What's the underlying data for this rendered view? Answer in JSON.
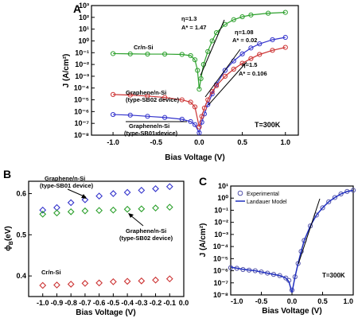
{
  "chart_data": [
    {
      "panel": "A",
      "type": "scatter",
      "xlabel": "Bias Voltage (V)",
      "ylabel": "J (A/cm²)",
      "xlim": [
        -1.25,
        1.15
      ],
      "ylim_log10": [
        -8,
        3
      ],
      "y_scale": "log",
      "x_ticks": [
        "-1.0",
        "-0.5",
        "0.0",
        "0.5",
        "1.0"
      ],
      "y_tick_labels": [
        "10⁻⁸",
        "10⁻⁷",
        "10⁻⁶",
        "10⁻⁵",
        "10⁻⁴",
        "10⁻³",
        "10⁻²",
        "10⁻¹",
        "10⁰",
        "10¹",
        "10²",
        "10³"
      ],
      "annotations": {
        "temperature": "T=300K",
        "green_eta": "η=1.3",
        "green_a": "A* = 1.47",
        "blue_eta": "η=1.08",
        "blue_a": "A* = 0.02",
        "red_eta": "η=1.5",
        "red_a": "A* = 0.106"
      },
      "curve_labels": {
        "cr": "Cr/n-Si",
        "sb02_line1": "Graphene/n-Si",
        "sb02_line2": "(type-SB02 device)",
        "sb01_line1": "Graphene/n-Si",
        "sb01_line2": "(type-SB01 device)"
      },
      "series": [
        {
          "color": "#2ca02c",
          "points": [
            [
              -1.0,
              -1.08
            ],
            [
              -0.8,
              -1.1
            ],
            [
              -0.6,
              -1.12
            ],
            [
              -0.4,
              -1.12
            ],
            [
              -0.2,
              -1.15
            ],
            [
              -0.1,
              -1.25
            ],
            [
              -0.05,
              -1.6
            ],
            [
              -0.02,
              -2.5
            ],
            [
              0.0,
              -4.1
            ],
            [
              0.02,
              -3.2
            ],
            [
              0.05,
              -2.0
            ],
            [
              0.1,
              -0.9
            ],
            [
              0.15,
              0.0
            ],
            [
              0.2,
              0.7
            ],
            [
              0.3,
              1.4
            ],
            [
              0.4,
              1.8
            ],
            [
              0.5,
              2.05
            ],
            [
              0.6,
              2.2
            ],
            [
              0.8,
              2.35
            ],
            [
              1.0,
              2.42
            ]
          ]
        },
        {
          "color": "#3333cc",
          "points": [
            [
              -1.0,
              -6.25
            ],
            [
              -0.8,
              -6.3
            ],
            [
              -0.6,
              -6.4
            ],
            [
              -0.4,
              -6.5
            ],
            [
              -0.2,
              -6.65
            ],
            [
              -0.1,
              -6.85
            ],
            [
              -0.05,
              -7.1
            ],
            [
              0.0,
              -7.8
            ],
            [
              0.03,
              -6.9
            ],
            [
              0.06,
              -6.2
            ],
            [
              0.1,
              -5.4
            ],
            [
              0.15,
              -4.5
            ],
            [
              0.2,
              -3.7
            ],
            [
              0.3,
              -2.5
            ],
            [
              0.4,
              -1.7
            ],
            [
              0.5,
              -1.1
            ],
            [
              0.6,
              -0.6
            ],
            [
              0.7,
              -0.25
            ],
            [
              0.85,
              0.1
            ],
            [
              1.0,
              0.3
            ]
          ]
        },
        {
          "color": "#cc3333",
          "points": [
            [
              -1.0,
              -4.55
            ],
            [
              -0.8,
              -4.6
            ],
            [
              -0.6,
              -4.68
            ],
            [
              -0.4,
              -4.8
            ],
            [
              -0.2,
              -5.0
            ],
            [
              -0.1,
              -5.2
            ],
            [
              -0.05,
              -5.6
            ],
            [
              0.0,
              -7.3
            ],
            [
              0.03,
              -6.4
            ],
            [
              0.06,
              -5.7
            ],
            [
              0.1,
              -5.0
            ],
            [
              0.15,
              -4.3
            ],
            [
              0.2,
              -3.8
            ],
            [
              0.3,
              -3.0
            ],
            [
              0.4,
              -2.4
            ],
            [
              0.5,
              -1.9
            ],
            [
              0.6,
              -1.5
            ],
            [
              0.7,
              -1.15
            ],
            [
              0.85,
              -0.8
            ],
            [
              1.0,
              -0.55
            ]
          ]
        }
      ]
    },
    {
      "panel": "B",
      "type": "scatter",
      "xlabel": "Bias Voltage (V)",
      "ylabel": "ϕ",
      "ylabel_sub": "B",
      "ylabel_suffix": "(eV)",
      "xlim": [
        -1.1,
        0.0
      ],
      "ylim": [
        0.35,
        0.63
      ],
      "x_ticks": [
        "-1.0",
        "-0.9",
        "-0.8",
        "-0.7",
        "-0.6",
        "-0.5",
        "-0.4",
        "-0.3",
        "-0.2",
        "-0.1",
        "0.0"
      ],
      "y_ticks": [
        "0.4",
        "0.5",
        "0.6"
      ],
      "curve_labels": {
        "sb01_line1": "Graphene/n-Si",
        "sb01_line2": "(type-SB01 device)",
        "sb02_line1": "Graphene/n-Si",
        "sb02_line2": "(type-SB02 device)",
        "cr": "Cr/n-Si"
      },
      "series": [
        {
          "color": "#3333cc",
          "x": [
            -1.0,
            -0.9,
            -0.8,
            -0.7,
            -0.6,
            -0.5,
            -0.4,
            -0.3,
            -0.2,
            -0.1
          ],
          "values": [
            0.56,
            0.566,
            0.578,
            0.585,
            0.594,
            0.6,
            0.603,
            0.608,
            0.612,
            0.617
          ]
        },
        {
          "color": "#2ca02c",
          "x": [
            -1.0,
            -0.9,
            -0.8,
            -0.7,
            -0.6,
            -0.5,
            -0.4,
            -0.3,
            -0.2,
            -0.1
          ],
          "values": [
            0.55,
            0.553,
            0.556,
            0.558,
            0.559,
            0.56,
            0.562,
            0.563,
            0.565,
            0.567
          ]
        },
        {
          "color": "#cc3333",
          "x": [
            -1.0,
            -0.9,
            -0.8,
            -0.7,
            -0.6,
            -0.5,
            -0.4,
            -0.3,
            -0.2,
            -0.1
          ],
          "values": [
            0.377,
            0.378,
            0.38,
            0.382,
            0.383,
            0.386,
            0.387,
            0.388,
            0.39,
            0.393
          ]
        }
      ]
    },
    {
      "panel": "C",
      "type": "line",
      "xlabel": "Bias Voltage (V)",
      "ylabel": "J (A/cm²)",
      "xlim": [
        -1.0,
        1.0
      ],
      "ylim_log10": [
        -8,
        1
      ],
      "y_scale": "log",
      "x_ticks": [
        "-1.0",
        "-0.5",
        "0.0",
        "0.5",
        "1.0"
      ],
      "y_tick_labels": [
        "10⁻⁸",
        "10⁻⁷",
        "10⁻⁶",
        "10⁻⁵",
        "10⁻⁴",
        "10⁻³",
        "10⁻²",
        "10⁻¹",
        "10⁰",
        "10¹"
      ],
      "legend": [
        "Experimental",
        "Landauer Model"
      ],
      "legend_position": "top-left",
      "temperature": "T=300K",
      "series": [
        {
          "name": "Experimental",
          "color": "#5555aa",
          "marker": "circle",
          "points": [
            [
              -1.0,
              -5.75
            ],
            [
              -0.9,
              -5.8
            ],
            [
              -0.8,
              -5.9
            ],
            [
              -0.7,
              -5.95
            ],
            [
              -0.6,
              -6.0
            ],
            [
              -0.5,
              -6.1
            ],
            [
              -0.4,
              -6.2
            ],
            [
              -0.3,
              -6.3
            ],
            [
              -0.2,
              -6.4
            ],
            [
              -0.1,
              -6.6
            ],
            [
              -0.05,
              -6.8
            ],
            [
              0.0,
              -7.6
            ],
            [
              0.05,
              -6.5
            ],
            [
              0.1,
              -5.4
            ],
            [
              0.15,
              -4.4
            ],
            [
              0.2,
              -3.5
            ],
            [
              0.3,
              -2.3
            ],
            [
              0.4,
              -1.4
            ],
            [
              0.5,
              -0.8
            ],
            [
              0.6,
              -0.3
            ],
            [
              0.7,
              0.05
            ],
            [
              0.8,
              0.35
            ],
            [
              0.9,
              0.55
            ],
            [
              1.0,
              0.65
            ]
          ]
        },
        {
          "name": "Landauer Model",
          "color": "#1f2fbf",
          "points": [
            [
              -1.0,
              -5.7
            ],
            [
              -0.8,
              -5.88
            ],
            [
              -0.6,
              -6.0
            ],
            [
              -0.4,
              -6.2
            ],
            [
              -0.2,
              -6.4
            ],
            [
              -0.1,
              -6.6
            ],
            [
              -0.05,
              -6.9
            ],
            [
              0.0,
              -7.8
            ],
            [
              0.05,
              -6.5
            ],
            [
              0.1,
              -5.4
            ],
            [
              0.15,
              -4.4
            ],
            [
              0.2,
              -3.5
            ],
            [
              0.3,
              -2.3
            ],
            [
              0.4,
              -1.4
            ],
            [
              0.5,
              -0.8
            ],
            [
              0.6,
              -0.3
            ],
            [
              0.7,
              0.05
            ],
            [
              0.8,
              0.35
            ],
            [
              0.9,
              0.55
            ],
            [
              1.0,
              0.65
            ]
          ]
        }
      ]
    }
  ],
  "panel_letters": {
    "a": "A",
    "b": "B",
    "c": "C"
  }
}
